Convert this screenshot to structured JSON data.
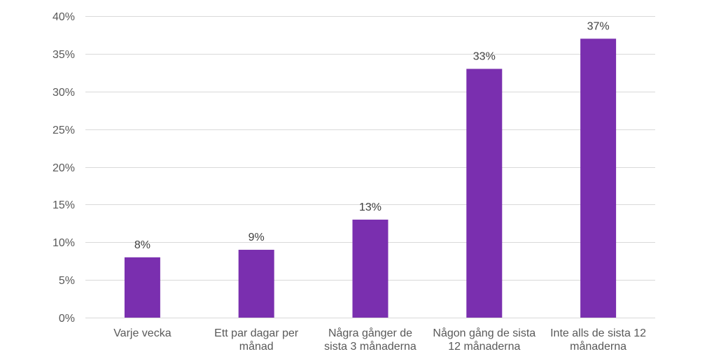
{
  "chart_data": {
    "type": "bar",
    "categories": [
      [
        "Varje vecka"
      ],
      [
        "Ett par dagar per",
        "månad"
      ],
      [
        "Några gånger de",
        "sista 3 månaderna"
      ],
      [
        "Någon gång de sista",
        "12 månaderna"
      ],
      [
        "Inte alls de sista 12",
        "månaderna"
      ]
    ],
    "values": [
      8,
      9,
      13,
      33,
      37
    ],
    "data_labels": [
      "8%",
      "9%",
      "13%",
      "33%",
      "37%"
    ],
    "title": "",
    "xlabel": "",
    "ylabel": "",
    "ylim": [
      0,
      40
    ],
    "yticks": [
      0,
      5,
      10,
      15,
      20,
      25,
      30,
      35,
      40
    ],
    "ytick_labels": [
      "0%",
      "5%",
      "10%",
      "15%",
      "20%",
      "25%",
      "30%",
      "35%",
      "40%"
    ],
    "grid": true,
    "legend": "none",
    "bar_color": "#7a2faf"
  }
}
